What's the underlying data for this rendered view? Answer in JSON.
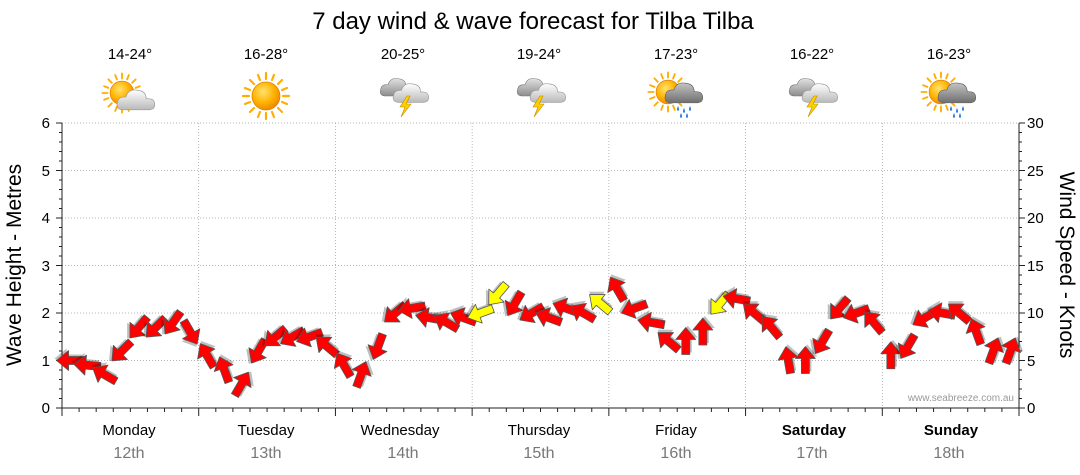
{
  "chart_data": {
    "type": "line",
    "title": "7 day wind & wave forecast for Tilba Tilba",
    "ylabel": "Wave Height - Metres",
    "y2label": "Wind Speed - Knots",
    "ylim": [
      0,
      6
    ],
    "y2lim": [
      0,
      30
    ],
    "yticks": [
      "0",
      "1",
      "2",
      "3",
      "4",
      "5",
      "6"
    ],
    "y2ticks": [
      "0",
      "5",
      "10",
      "15",
      "20",
      "25",
      "30"
    ],
    "grid": true,
    "credit": "www.seabreeze.com.au",
    "days": [
      {
        "name": "Monday",
        "date": "12th",
        "temp": "14-24°",
        "icon": "partly-cloudy-icon",
        "bold": false
      },
      {
        "name": "Tuesday",
        "date": "13th",
        "temp": "16-28°",
        "icon": "sunny-icon",
        "bold": false
      },
      {
        "name": "Wednesday",
        "date": "14th",
        "temp": "20-25°",
        "icon": "thunderstorm-icon",
        "bold": false
      },
      {
        "name": "Thursday",
        "date": "15th",
        "temp": "19-24°",
        "icon": "thunderstorm-icon",
        "bold": false
      },
      {
        "name": "Friday",
        "date": "16th",
        "temp": "17-23°",
        "icon": "sun-showers-icon",
        "bold": false
      },
      {
        "name": "Saturday",
        "date": "17th",
        "temp": "16-22°",
        "icon": "thunderstorm-icon",
        "bold": true
      },
      {
        "name": "Sunday",
        "date": "18th",
        "temp": "16-23°",
        "icon": "sun-showers-icon",
        "bold": true
      }
    ],
    "series": [
      {
        "name": "Wind",
        "x": [
          0,
          0.125,
          0.25,
          0.375,
          0.5,
          0.625,
          0.75,
          0.875,
          1,
          1.125,
          1.25,
          1.375,
          1.5,
          1.625,
          1.75,
          1.875,
          2,
          2.125,
          2.25,
          2.375,
          2.5,
          2.625,
          2.75,
          2.875,
          3,
          3.125,
          3.25,
          3.375,
          3.5,
          3.625,
          3.75,
          3.875,
          4,
          4.125,
          4.25,
          4.375,
          4.5,
          4.625,
          4.75,
          4.875,
          5,
          5.125,
          5.25,
          5.375,
          5.5,
          5.625,
          5.75,
          5.875,
          6,
          6.125,
          6.25,
          6.375,
          6.5,
          6.625,
          6.75,
          6.875
        ],
        "values": [
          5,
          4.5,
          3.5,
          6,
          8.5,
          8.5,
          9,
          8,
          5.5,
          4,
          2.5,
          6,
          7.5,
          7.5,
          7.5,
          6.5,
          4.5,
          3.5,
          6.5,
          10,
          10.5,
          9.5,
          9,
          9.5,
          10,
          12,
          11,
          10,
          9.5,
          10.5,
          10,
          11,
          12.5,
          10.5,
          9,
          7,
          7,
          8,
          11,
          11.5,
          10,
          8.5,
          5,
          5,
          7,
          10.5,
          10,
          9,
          5.5,
          6.5,
          9.5,
          10,
          10,
          8,
          6,
          6
        ],
        "directions": [
          90,
          95,
          120,
          45,
          40,
          45,
          35,
          330,
          150,
          160,
          210,
          30,
          50,
          60,
          70,
          130,
          150,
          200,
          20,
          50,
          80,
          100,
          120,
          110,
          70,
          40,
          30,
          60,
          110,
          110,
          120,
          130,
          150,
          70,
          100,
          130,
          180,
          180,
          40,
          100,
          130,
          140,
          170,
          180,
          30,
          40,
          70,
          140,
          180,
          30,
          60,
          100,
          130,
          160,
          200,
          200
        ],
        "colors": [
          "#ff0000",
          "#ff0000",
          "#ff0000",
          "#ff0000",
          "#ff0000",
          "#ff0000",
          "#ff0000",
          "#ff0000",
          "#ff0000",
          "#ff0000",
          "#ff0000",
          "#ff0000",
          "#ff0000",
          "#ff0000",
          "#ff0000",
          "#ff0000",
          "#ff0000",
          "#ff0000",
          "#ff0000",
          "#ff0000",
          "#ff0000",
          "#ff0000",
          "#ff0000",
          "#ff0000",
          "#ffff00",
          "#ffff00",
          "#ff0000",
          "#ff0000",
          "#ff0000",
          "#ff0000",
          "#ff0000",
          "#ffff00",
          "#ff0000",
          "#ff0000",
          "#ff0000",
          "#ff0000",
          "#ff0000",
          "#ff0000",
          "#ffff00",
          "#ff0000",
          "#ff0000",
          "#ff0000",
          "#ff0000",
          "#ff0000",
          "#ff0000",
          "#ff0000",
          "#ff0000",
          "#ff0000",
          "#ff0000",
          "#ff0000",
          "#ff0000",
          "#ff0000",
          "#ff0000",
          "#ff0000",
          "#ff0000",
          "#ff0000"
        ]
      }
    ]
  },
  "colors": {
    "arrow_strong": "#ff0000",
    "arrow_moderate": "#ffff00",
    "arrow_outline": "#555555",
    "grid": "#9a9a9a",
    "date_text": "#777777"
  }
}
